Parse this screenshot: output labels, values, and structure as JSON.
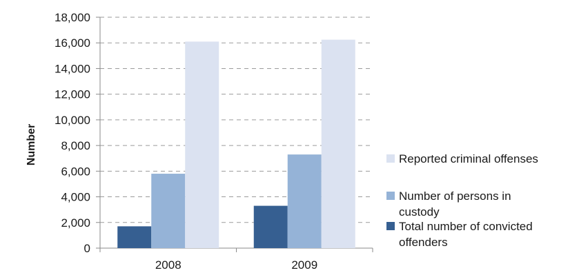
{
  "chart_data": {
    "type": "bar",
    "categories": [
      "2008",
      "2009"
    ],
    "series": [
      {
        "name": "Total number of convicted offenders",
        "color": "#365f91",
        "values": [
          1700,
          3300
        ]
      },
      {
        "name": "Number of persons in custody",
        "color": "#95b3d7",
        "values": [
          5800,
          7300
        ]
      },
      {
        "name": "Reported criminal offenses",
        "color": "#dbe2f1",
        "values": [
          16100,
          16250
        ]
      }
    ],
    "legend_order": [
      "Reported criminal offenses",
      "Number of persons in custody",
      "Total number of convicted offenders"
    ],
    "title": "",
    "xlabel": "",
    "ylabel": "Number",
    "ylim": [
      0,
      18000
    ],
    "yticks": [
      0,
      2000,
      4000,
      6000,
      8000,
      10000,
      12000,
      14000,
      16000,
      18000
    ],
    "ytick_labels": [
      "0",
      "2,000",
      "4,000",
      "6,000",
      "8,000",
      "10,000",
      "12,000",
      "14,000",
      "16,000",
      "18,000"
    ],
    "grid": true,
    "legend_position": "right"
  }
}
